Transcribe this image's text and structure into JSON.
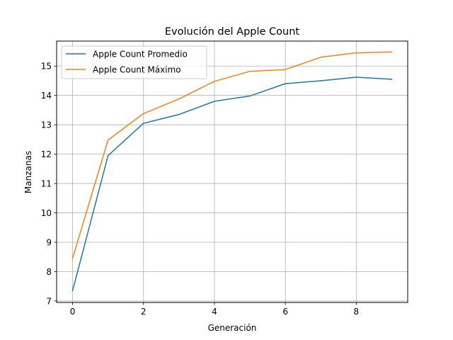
{
  "chart_data": {
    "type": "line",
    "title": "Evolución del Apple Count",
    "xlabel": "Generación",
    "ylabel": "Manzanas",
    "x": [
      0,
      1,
      2,
      3,
      4,
      5,
      6,
      7,
      8,
      9
    ],
    "xlim": [
      -0.45,
      9.45
    ],
    "ylim": [
      6.95,
      15.85
    ],
    "xticks": [
      0,
      2,
      4,
      6,
      8
    ],
    "yticks": [
      7,
      8,
      9,
      10,
      11,
      12,
      13,
      14,
      15
    ],
    "grid": true,
    "legend_position": "top-left",
    "series": [
      {
        "name": "Apple Count Promedio",
        "color": "#1f77b4",
        "values": [
          7.35,
          11.95,
          13.05,
          13.35,
          13.8,
          13.98,
          14.4,
          14.5,
          14.62,
          14.55
        ]
      },
      {
        "name": "Apple Count Máximo",
        "color": "#ff7f0e",
        "values": [
          8.45,
          12.48,
          13.38,
          13.88,
          14.48,
          14.82,
          14.88,
          15.3,
          15.45,
          15.48
        ]
      }
    ]
  }
}
